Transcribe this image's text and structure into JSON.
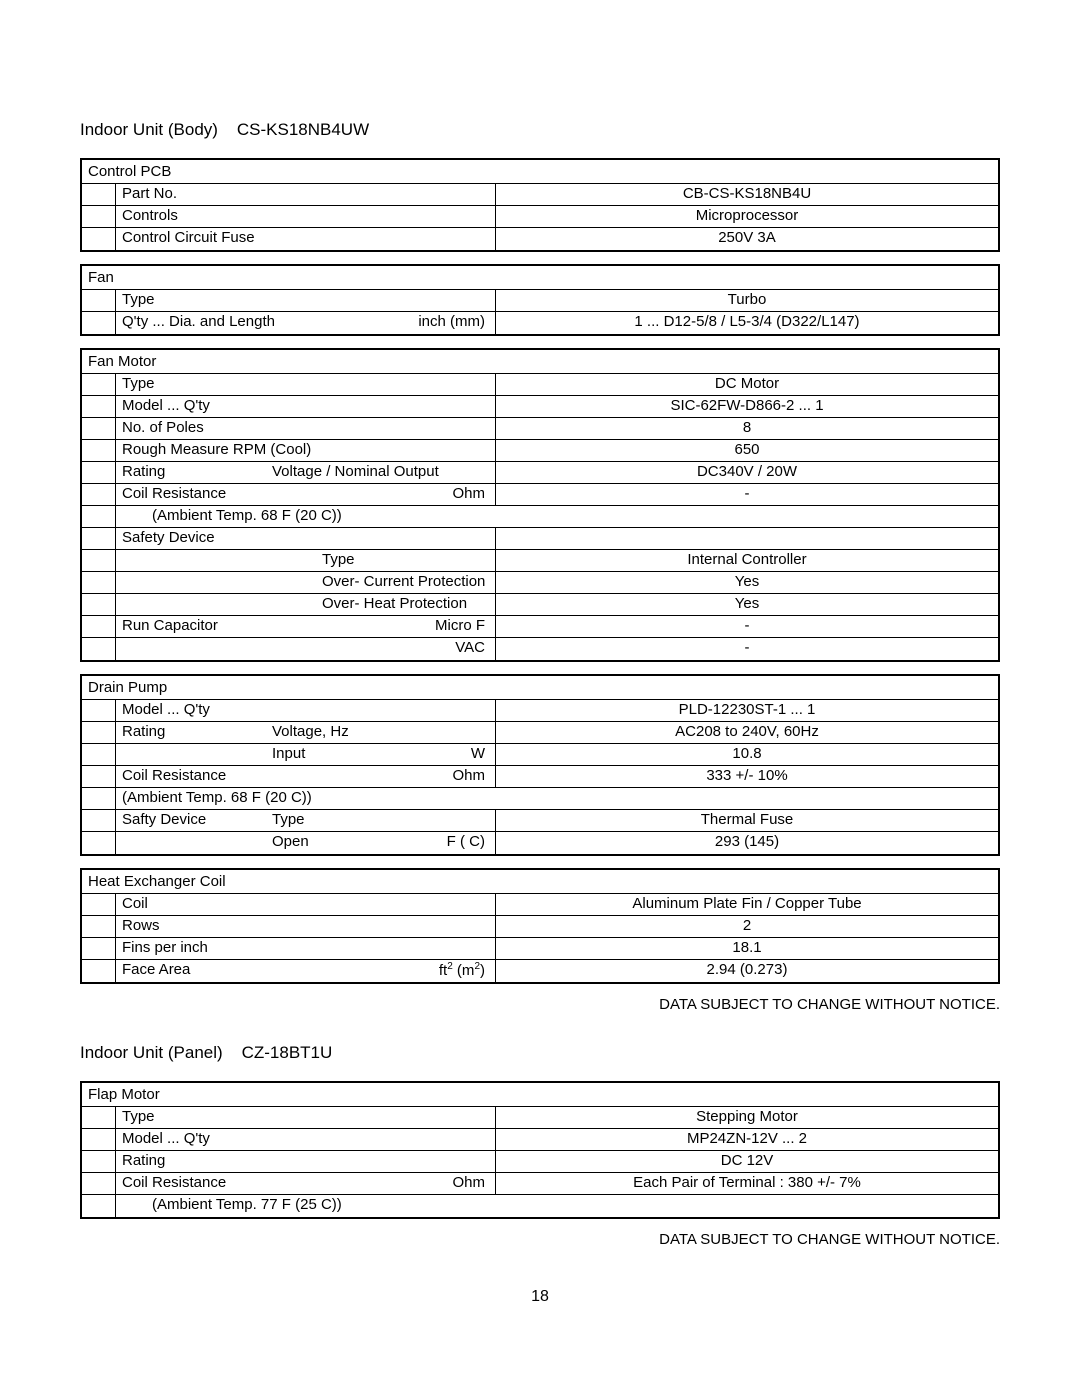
{
  "page": {
    "title1_prefix": "Indoor Unit (Body)",
    "title1_model": "CS-KS18NB4UW",
    "title2_prefix": "Indoor Unit (Panel)",
    "title2_model": "CZ-18BT1U",
    "notice": "DATA SUBJECT TO CHANGE WITHOUT NOTICE.",
    "page_number": "18"
  },
  "control_pcb": {
    "header": "Control PCB",
    "rows": [
      {
        "label": "Part No.",
        "value": "CB-CS-KS18NB4U"
      },
      {
        "label": "Controls",
        "value": "Microprocessor"
      },
      {
        "label": "Control Circuit Fuse",
        "value": "250V 3A"
      }
    ]
  },
  "fan": {
    "header": "Fan",
    "rows": [
      {
        "label": "Type",
        "unit": "",
        "value": "Turbo"
      },
      {
        "label": "Q'ty ... Dia. and Length",
        "unit": "inch (mm)",
        "value": "1 ... D12-5/8 / L5-3/4 (D322/L147)"
      }
    ]
  },
  "fan_motor": {
    "header": "Fan Motor",
    "rows": [
      {
        "c1": "Type",
        "c2": "",
        "unit": "",
        "value": "DC Motor"
      },
      {
        "c1": "Model ... Q'ty",
        "c2": "",
        "unit": "",
        "value": "SIC-62FW-D866-2 ... 1"
      },
      {
        "c1": "No. of Poles",
        "c2": "",
        "unit": "",
        "value": "8"
      },
      {
        "c1": "Rough Measure RPM (Cool)",
        "c2": "",
        "unit": "",
        "value": "650",
        "c1wide": true
      },
      {
        "c1": "Rating",
        "c2": "Voltage / Nominal Output",
        "unit": "",
        "value": "DC340V / 20W"
      },
      {
        "c1": "Coil Resistance",
        "c2": "",
        "unit": "Ohm",
        "value": "-"
      },
      {
        "c1": "(Ambient Temp. 68 F (20 C))",
        "c2": "",
        "unit": "",
        "value": "",
        "indent": true,
        "c1wide": true,
        "noborder": true
      },
      {
        "c1": "Safety Device",
        "c2": "",
        "unit": "",
        "value": ""
      },
      {
        "c1": "",
        "c2": "Type",
        "unit": "",
        "value": "Internal Controller",
        "indent_c2": true
      },
      {
        "c1": "",
        "c2": "Over- Current Protection",
        "unit": "",
        "value": "Yes",
        "indent_c2": true
      },
      {
        "c1": "",
        "c2": "Over- Heat Protection",
        "unit": "",
        "value": "Yes",
        "indent_c2": true
      },
      {
        "c1": "Run Capacitor",
        "c2": "",
        "unit": "Micro F",
        "value": "-"
      },
      {
        "c1": "",
        "c2": "",
        "unit": "VAC",
        "value": "-"
      }
    ]
  },
  "drain_pump": {
    "header": "Drain Pump",
    "rows": [
      {
        "c1": "Model ... Q'ty",
        "c2": "",
        "unit": "",
        "value": "PLD-12230ST-1 ... 1"
      },
      {
        "c1": "Rating",
        "c2": "Voltage, Hz",
        "unit": "",
        "value": "AC208 to 240V, 60Hz"
      },
      {
        "c1": "",
        "c2": "Input",
        "unit": "W",
        "value": "10.8"
      },
      {
        "c1": "Coil Resistance",
        "c2": "",
        "unit": "Ohm",
        "value": "333 +/- 10%"
      },
      {
        "c1": "(Ambient Temp. 68 F (20 C))",
        "c2": "",
        "unit": "",
        "value": "",
        "c1wide": true,
        "noborder": true
      },
      {
        "c1": "Safty Device",
        "c2": "Type",
        "unit": "",
        "value": "Thermal Fuse"
      },
      {
        "c1": "",
        "c2": "Open",
        "unit": "F ( C)",
        "value": "293 (145)"
      }
    ]
  },
  "heat_exchanger": {
    "header": "Heat Exchanger Coil",
    "rows": [
      {
        "label": "Coil",
        "unit": "",
        "value": "Aluminum Plate Fin / Copper Tube"
      },
      {
        "label": "Rows",
        "unit": "",
        "value": "2"
      },
      {
        "label": "Fins per inch",
        "unit": "",
        "value": "18.1"
      },
      {
        "label": "Face Area",
        "unit_html": "ft² (m²)",
        "value": "2.94 (0.273)"
      }
    ]
  },
  "flap_motor": {
    "header": "Flap Motor",
    "rows": [
      {
        "c1": "Type",
        "c2": "",
        "unit": "",
        "value": "Stepping Motor"
      },
      {
        "c1": "Model ... Q'ty",
        "c2": "",
        "unit": "",
        "value": "MP24ZN-12V ... 2"
      },
      {
        "c1": "Rating",
        "c2": "",
        "unit": "",
        "value": "DC 12V"
      },
      {
        "c1": "Coil Resistance",
        "c2": "",
        "unit": "Ohm",
        "value": "Each Pair of Terminal : 380 +/- 7%"
      },
      {
        "c1": "(Ambient Temp. 77 F (25 C))",
        "c2": "",
        "unit": "",
        "value": "",
        "indent": true,
        "c1wide": true,
        "noborder": true
      }
    ]
  }
}
